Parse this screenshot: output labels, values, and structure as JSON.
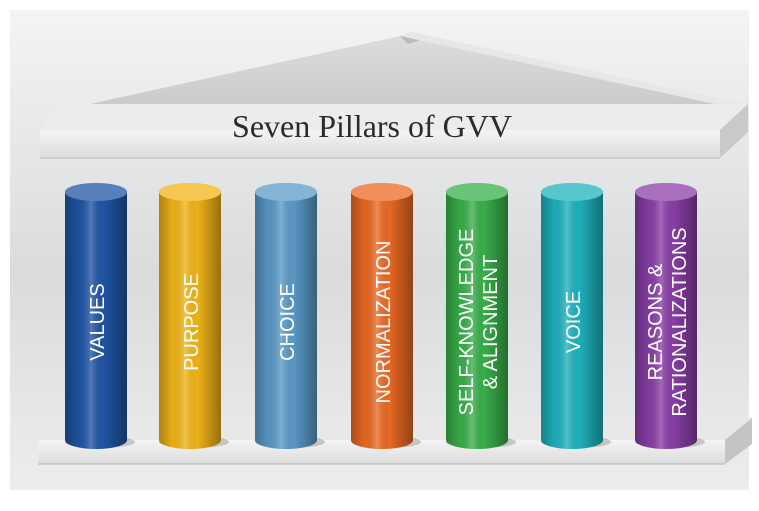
{
  "title": "Seven Pillars of GVV",
  "pillars": [
    {
      "lines": [
        "VALUES"
      ],
      "color": "#1f55a6"
    },
    {
      "lines": [
        "PURPOSE"
      ],
      "color": "#f2b517"
    },
    {
      "lines": [
        "CHOICE"
      ],
      "color": "#5b9bc9"
    },
    {
      "lines": [
        "NORMALIZATION"
      ],
      "color": "#ec6a24"
    },
    {
      "lines": [
        "SELF-KNOWLEDGE",
        "& ALIGNMENT"
      ],
      "color": "#39b04a"
    },
    {
      "lines": [
        "VOICE"
      ],
      "color": "#1fb3bf"
    },
    {
      "lines": [
        "REASONS &",
        "RATIONALIZATIONS"
      ],
      "color": "#8a3fa8"
    }
  ]
}
